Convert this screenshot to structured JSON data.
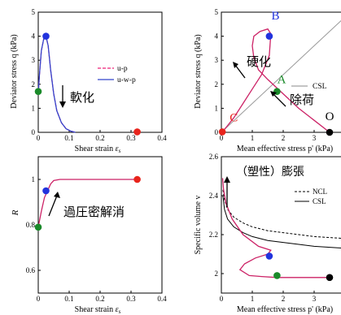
{
  "chart_data": [
    {
      "id": "tl",
      "type": "line",
      "xlabel_pre": "Shear strain ",
      "xlabel_sym": "ε",
      "xlabel_sub": "s",
      "ylabel": "Deviator stress q (kPa)",
      "xlim": [
        0,
        0.4
      ],
      "ylim": [
        0,
        5
      ],
      "xticks": [
        "0",
        "0.1",
        "0.2",
        "0.3",
        "0.4"
      ],
      "yticks": [
        "0",
        "1",
        "2",
        "3",
        "4",
        "5"
      ],
      "legend": [
        "u-p",
        "u-w-p"
      ],
      "annotation": "軟化",
      "series": [
        {
          "name": "u-p",
          "color": "#ee2277",
          "dash": "4,2",
          "x": [
            0,
            0.004,
            0.01,
            0.018,
            0.025,
            0.032,
            0.04,
            0.05,
            0.06,
            0.075,
            0.09,
            0.105,
            0.12
          ],
          "y": [
            1.6,
            2.4,
            3.4,
            3.9,
            4.0,
            3.6,
            2.6,
            1.6,
            0.9,
            0.4,
            0.15,
            0.05,
            0.0
          ]
        },
        {
          "name": "u-w-p",
          "color": "#3344cc",
          "dash": "",
          "x": [
            0,
            0.004,
            0.01,
            0.018,
            0.025,
            0.032,
            0.04,
            0.05,
            0.06,
            0.075,
            0.09,
            0.105,
            0.12
          ],
          "y": [
            1.6,
            2.4,
            3.4,
            3.9,
            4.0,
            3.6,
            2.6,
            1.6,
            0.9,
            0.4,
            0.15,
            0.05,
            0.0
          ]
        }
      ],
      "markers": [
        {
          "x": 0,
          "y": 1.7,
          "color": "#1a8a2a"
        },
        {
          "x": 0.025,
          "y": 4.0,
          "color": "#2233dd"
        },
        {
          "x": 0.32,
          "y": 0.02,
          "color": "#e8241c"
        }
      ]
    },
    {
      "id": "tr",
      "type": "line",
      "xlabel": "Mean effective stress p' (kPa)",
      "ylabel": "Deviator stress q (kPa)",
      "xlim": [
        0,
        4
      ],
      "ylim": [
        0,
        5
      ],
      "xticks": [
        "0",
        "1",
        "2",
        "3",
        "4"
      ],
      "yticks": [
        "0",
        "1",
        "2",
        "3",
        "4",
        "5"
      ],
      "legend": [
        "CSL"
      ],
      "annotations": [
        "硬化",
        "除荷"
      ],
      "point_labels": [
        {
          "text": "B",
          "x": 1.75,
          "y": 4.7,
          "color": "#2233dd"
        },
        {
          "text": "A",
          "x": 1.95,
          "y": 2.05,
          "color": "#1a8a2a"
        },
        {
          "text": "C",
          "x": 0.4,
          "y": 0.45,
          "color": "#e8241c"
        },
        {
          "text": "O",
          "x": 3.5,
          "y": 0.5,
          "color": "#000000"
        }
      ],
      "csl": {
        "x": [
          0,
          4
        ],
        "y": [
          0,
          4.8
        ]
      },
      "series": [
        {
          "name": "path",
          "color": "#cc2266",
          "x": [
            3.5,
            3.0,
            2.5,
            2.0,
            1.5,
            1.2,
            1.05,
            1.0,
            1.05,
            1.25,
            1.5,
            1.6,
            1.55,
            1.3,
            1.0,
            0.7,
            0.4,
            0.15,
            0.03
          ],
          "y": [
            0.0,
            0.5,
            1.0,
            1.6,
            2.2,
            2.6,
            3.1,
            3.6,
            4.0,
            4.2,
            4.3,
            4.1,
            3.2,
            2.4,
            1.8,
            1.2,
            0.6,
            0.2,
            0.02
          ]
        }
      ],
      "markers": [
        {
          "x": 3.5,
          "y": 0.0,
          "color": "#000000"
        },
        {
          "x": 1.8,
          "y": 1.7,
          "color": "#1a8a2a"
        },
        {
          "x": 1.55,
          "y": 4.0,
          "color": "#2233dd"
        },
        {
          "x": 0.03,
          "y": 0.02,
          "color": "#e8241c"
        }
      ]
    },
    {
      "id": "bl",
      "type": "line",
      "xlabel_pre": "Shear strain ",
      "xlabel_sym": "ε",
      "xlabel_sub": "s",
      "ylabel": "R",
      "xlim": [
        0,
        0.4
      ],
      "ylim": [
        0.5,
        1.1
      ],
      "xticks": [
        "0",
        "0.1",
        "0.2",
        "0.3",
        "0.4"
      ],
      "yticks": [
        "0.6",
        "0.8",
        "1"
      ],
      "ytick_values": [
        0.6,
        0.8,
        1.0
      ],
      "annotation": "過圧密解消",
      "series": [
        {
          "name": "R",
          "color": "#cc2266",
          "x": [
            0,
            0.01,
            0.02,
            0.03,
            0.04,
            0.05,
            0.07,
            0.1,
            0.2,
            0.32
          ],
          "y": [
            0.79,
            0.86,
            0.92,
            0.95,
            0.98,
            0.995,
            1.0,
            1.0,
            1.0,
            1.0
          ]
        }
      ],
      "markers": [
        {
          "x": 0,
          "y": 0.79,
          "color": "#1a8a2a"
        },
        {
          "x": 0.025,
          "y": 0.95,
          "color": "#2233dd"
        },
        {
          "x": 0.32,
          "y": 1.0,
          "color": "#e8241c"
        }
      ]
    },
    {
      "id": "br",
      "type": "line",
      "xlabel": "Mean effective stress p' (kPa)",
      "ylabel": "Specific volume v",
      "xlim": [
        0,
        4
      ],
      "ylim": [
        1.9,
        2.6
      ],
      "xticks": [
        "0",
        "1",
        "2",
        "3",
        "4"
      ],
      "yticks": [
        "2",
        "2.2",
        "2.4",
        "2.6"
      ],
      "ytick_values": [
        2.0,
        2.2,
        2.4,
        2.6
      ],
      "legend": [
        "NCL",
        "CSL"
      ],
      "annotation": "（塑性）膨張",
      "ncl": {
        "x": [
          0.05,
          0.1,
          0.2,
          0.4,
          0.7,
          1.0,
          1.5,
          2.0,
          3.0,
          4.0
        ],
        "y": [
          2.43,
          2.38,
          2.33,
          2.29,
          2.26,
          2.24,
          2.22,
          2.21,
          2.19,
          2.18
        ]
      },
      "csl": {
        "x": [
          0.05,
          0.1,
          0.2,
          0.4,
          0.7,
          1.0,
          1.5,
          2.0,
          3.0,
          4.0
        ],
        "y": [
          2.4,
          2.33,
          2.28,
          2.24,
          2.21,
          2.19,
          2.17,
          2.16,
          2.14,
          2.13
        ]
      },
      "series": [
        {
          "name": "path",
          "color": "#cc2266",
          "x": [
            3.5,
            2.8,
            2.2,
            1.8,
            1.3,
            0.9,
            0.6,
            0.75,
            1.1,
            1.5,
            1.6,
            1.2,
            0.7,
            0.35,
            0.15,
            0.07,
            0.04
          ],
          "y": [
            1.98,
            1.98,
            1.98,
            1.98,
            1.985,
            1.99,
            2.02,
            2.05,
            2.08,
            2.1,
            2.12,
            2.14,
            2.2,
            2.28,
            2.36,
            2.43,
            2.49
          ]
        }
      ],
      "markers": [
        {
          "x": 3.5,
          "y": 1.98,
          "color": "#000000"
        },
        {
          "x": 1.8,
          "y": 1.99,
          "color": "#1a8a2a"
        },
        {
          "x": 1.55,
          "y": 2.09,
          "color": "#2233dd"
        }
      ]
    }
  ]
}
